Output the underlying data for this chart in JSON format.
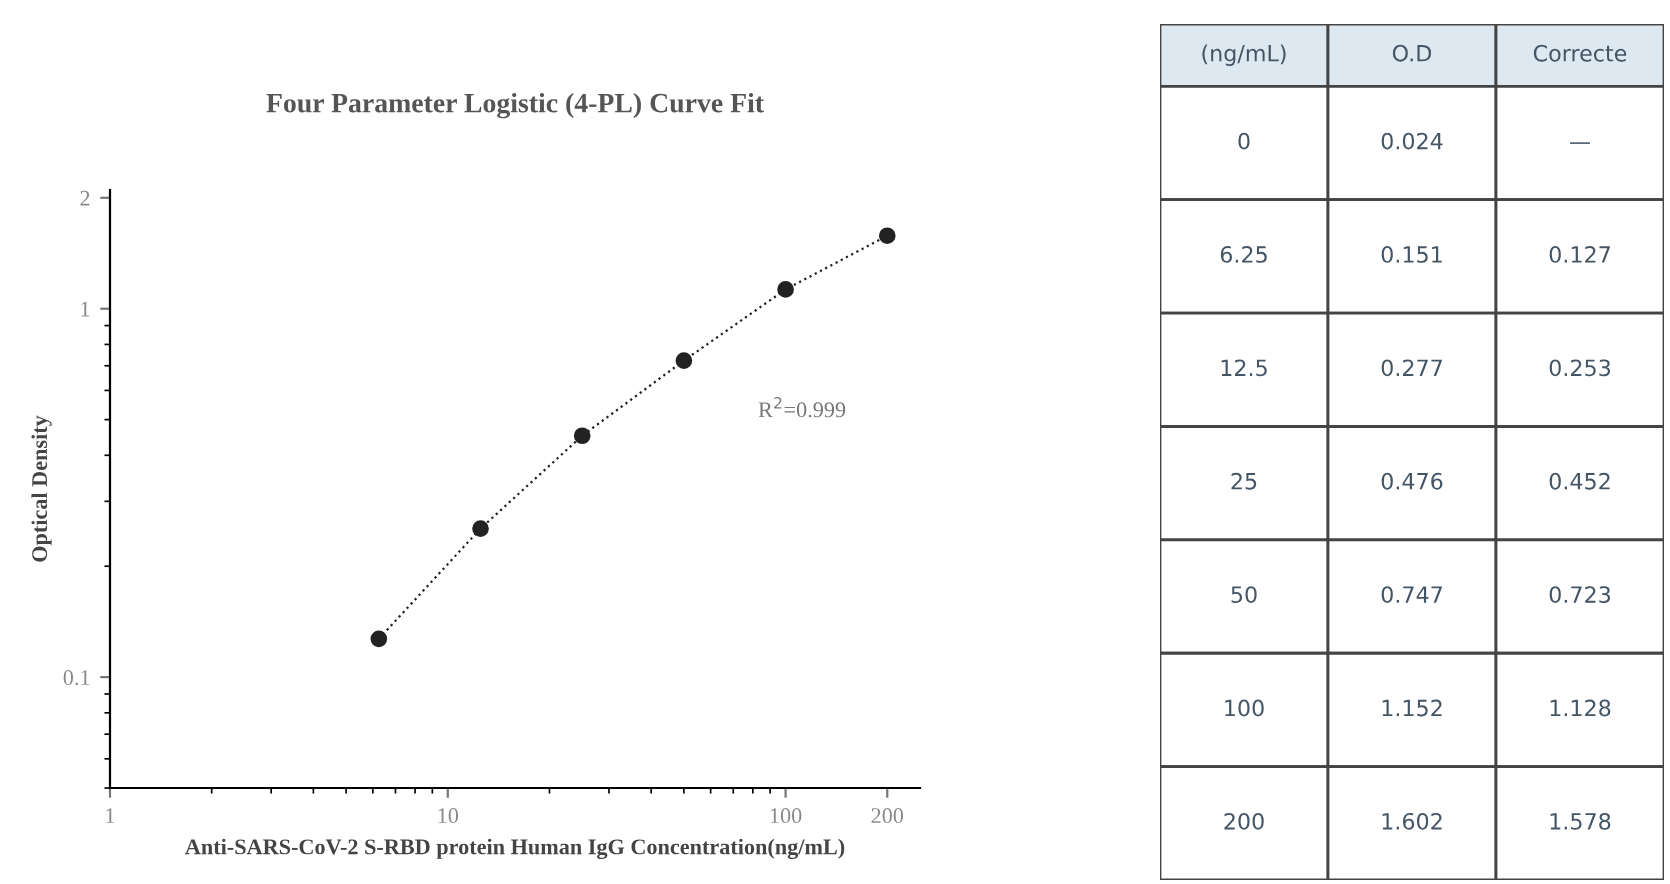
{
  "chart_data": [
    {
      "type": "line",
      "title": "Four Parameter Logistic (4-PL) Curve Fit",
      "xlabel": "Anti-SARS-CoV-2 S-RBD protein Human IgG Concentration(ng/mL)",
      "ylabel": "Optical Density",
      "x": [
        6.25,
        12.5,
        25,
        50,
        100,
        200
      ],
      "series": [
        {
          "color": "#222222",
          "values": [
            0.127,
            0.253,
            0.452,
            0.723,
            1.128,
            1.578
          ]
        }
      ],
      "marker": "circle",
      "line_style": "dotted",
      "log": "xy",
      "xlim": [
        1,
        250
      ],
      "xticks": [
        1,
        10,
        100,
        200
      ],
      "ylim": [
        0.05,
        2.1
      ],
      "yticks": [
        0.1,
        1,
        2
      ],
      "annotations": [
        "R$^{2}$=0.999"
      ],
      "grid": false
    },
    {
      "type": "other",
      "categories": [
        "(ng/mL)",
        "O.D",
        "Correcte"
      ],
      "cell_labels": [
        [
          "0",
          "0.024",
          "—"
        ],
        [
          "6.25",
          "0.151",
          "0.127"
        ],
        [
          "12.5",
          "0.277",
          "0.253"
        ],
        [
          "25",
          "0.476",
          "0.452"
        ],
        [
          "50",
          "0.747",
          "0.723"
        ],
        [
          "100",
          "1.152",
          "1.128"
        ],
        [
          "200",
          "1.602",
          "1.578"
        ]
      ]
    }
  ]
}
